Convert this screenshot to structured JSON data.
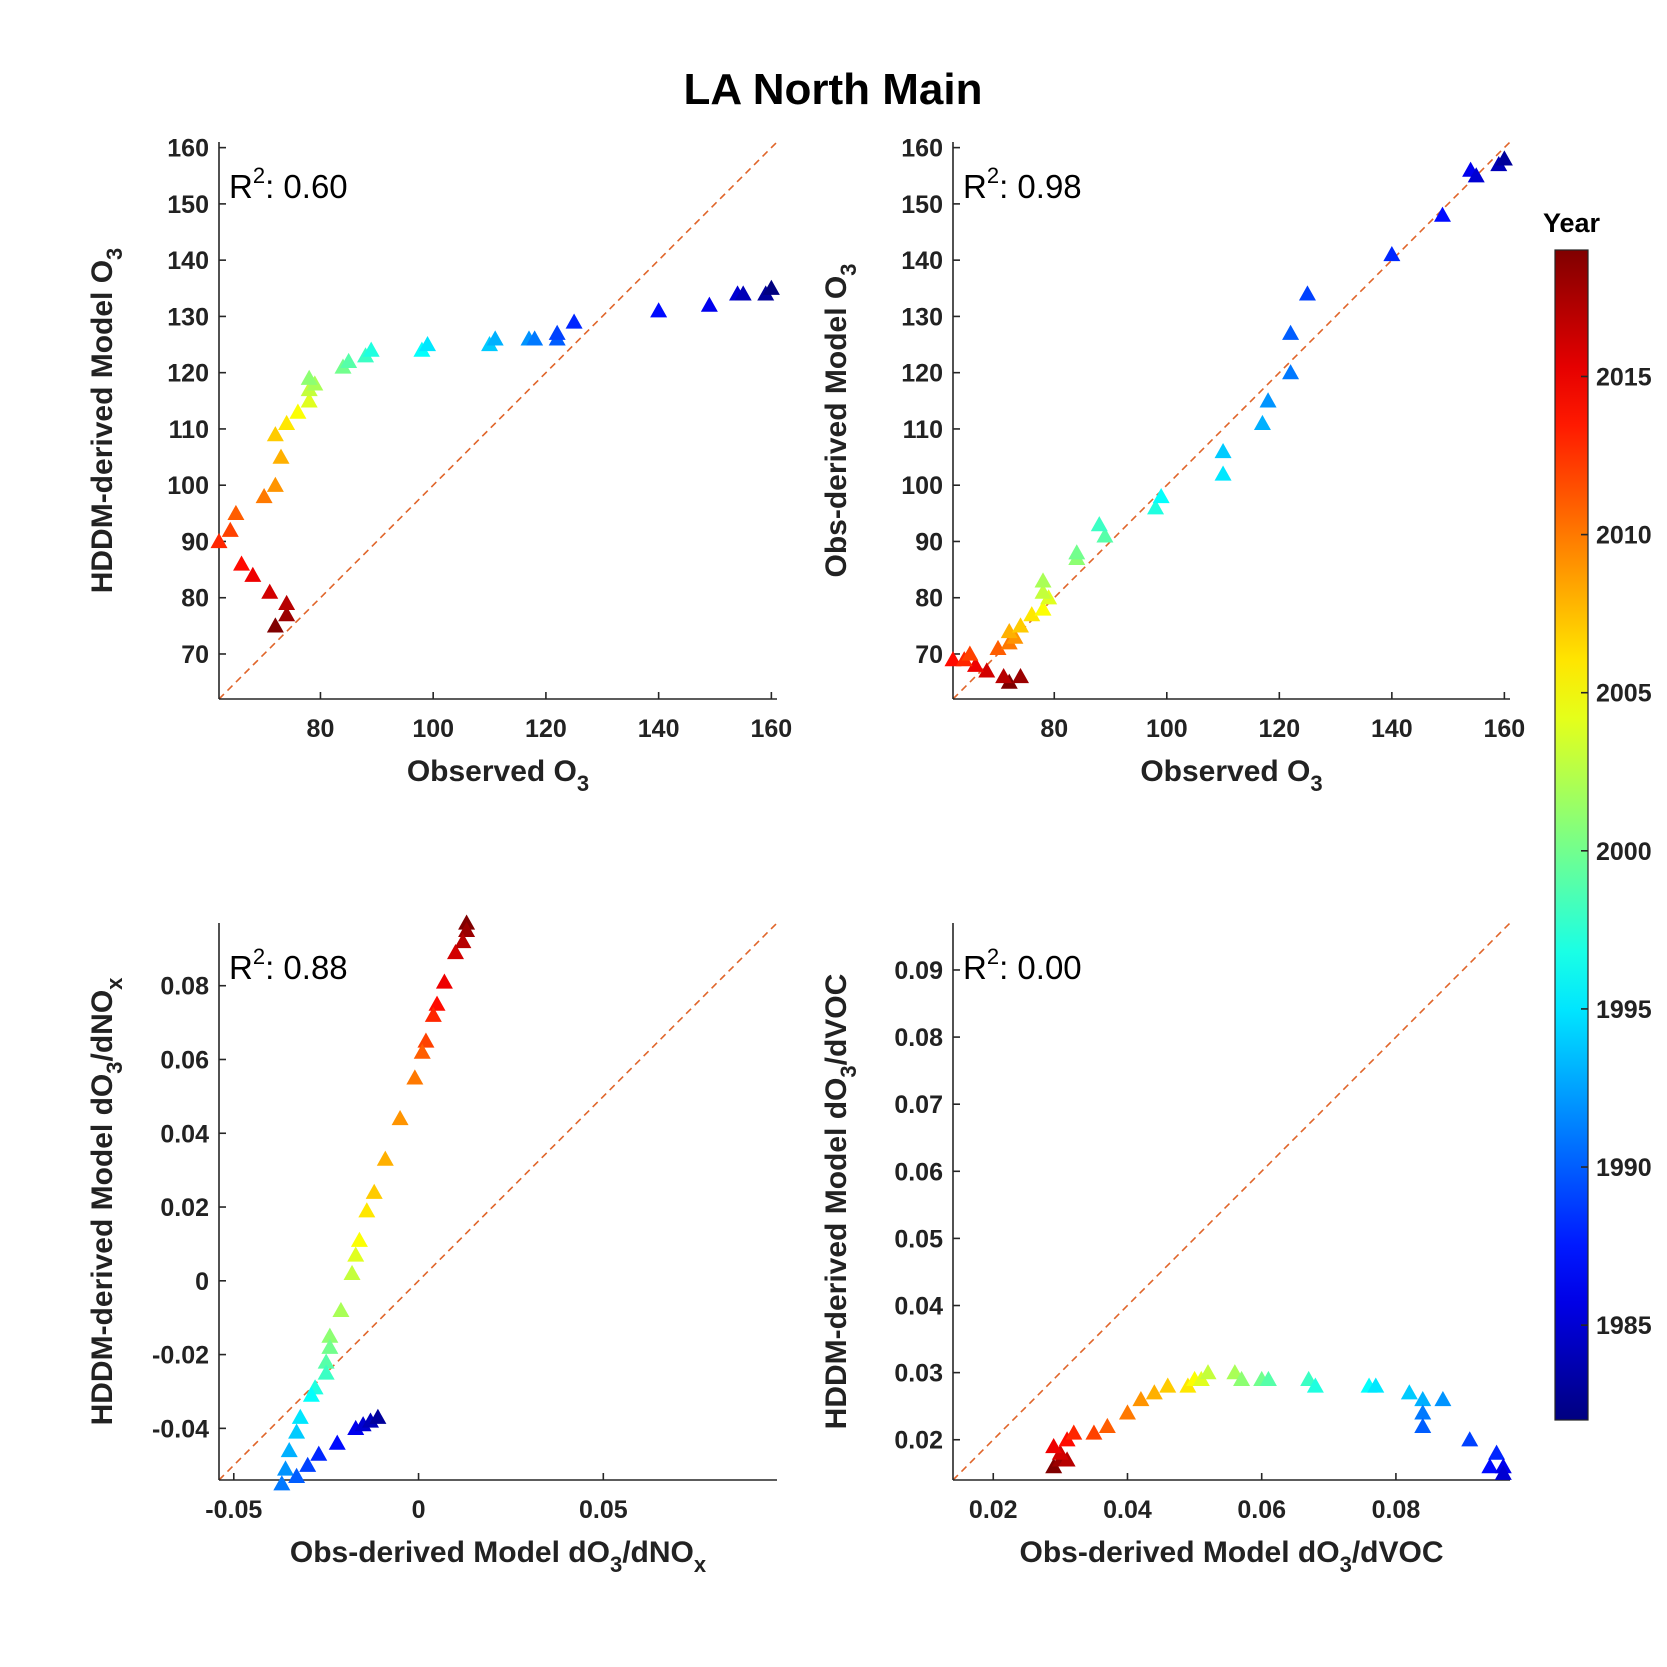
{
  "figure_title": "LA North Main",
  "colorbar": {
    "title": "Year",
    "min": 1982,
    "max": 2019,
    "ticks": [
      1985,
      1990,
      1995,
      2000,
      2005,
      2010,
      2015
    ],
    "tick_labels": [
      "1985",
      "1990",
      "1995",
      "2000",
      "2005",
      "2010",
      "2015"
    ],
    "colormap": "jet"
  },
  "chart_data": [
    {
      "type": "scatter",
      "id": "tl",
      "xlabel": "Observed O",
      "xlabel_sub": "3",
      "ylabel": "HDDM-derived Model O",
      "ylabel_sub": "3",
      "annotation": {
        "base": "R",
        "sup": "2",
        "text": ": 0.60"
      },
      "xlim": [
        62,
        161
      ],
      "ylim": [
        62,
        161
      ],
      "xticks": [
        80,
        100,
        120,
        140,
        160
      ],
      "xtick_labels": [
        "80",
        "100",
        "120",
        "140",
        "160"
      ],
      "yticks": [
        70,
        80,
        90,
        100,
        110,
        120,
        130,
        140,
        150,
        160
      ],
      "ytick_labels": [
        "70",
        "80",
        "90",
        "100",
        "110",
        "120",
        "130",
        "140",
        "150",
        "160"
      ],
      "reference_line": "y = x",
      "marker": "triangle",
      "points": [
        [
          72,
          75,
          2019
        ],
        [
          74,
          77,
          2018
        ],
        [
          74,
          79,
          2017
        ],
        [
          71,
          81,
          2016
        ],
        [
          68,
          84,
          2015
        ],
        [
          66,
          86,
          2014
        ],
        [
          62,
          90,
          2013
        ],
        [
          64,
          92,
          2012
        ],
        [
          65,
          95,
          2011
        ],
        [
          70,
          98,
          2010
        ],
        [
          72,
          100,
          2009
        ],
        [
          73,
          105,
          2008
        ],
        [
          72,
          109,
          2007
        ],
        [
          74,
          111,
          2006
        ],
        [
          76,
          113,
          2005
        ],
        [
          78,
          115,
          2004
        ],
        [
          78,
          117,
          2003
        ],
        [
          79,
          118,
          2002
        ],
        [
          78,
          119,
          2001
        ],
        [
          84,
          121,
          2000
        ],
        [
          85,
          122,
          1999
        ],
        [
          88,
          123,
          1998
        ],
        [
          89,
          124,
          1997
        ],
        [
          98,
          124,
          1996
        ],
        [
          99,
          125,
          1995
        ],
        [
          110,
          125,
          1994
        ],
        [
          111,
          126,
          1993
        ],
        [
          117,
          126,
          1992
        ],
        [
          118,
          126,
          1991
        ],
        [
          122,
          126,
          1990
        ],
        [
          122,
          127,
          1989
        ],
        [
          125,
          129,
          1988
        ],
        [
          140,
          131,
          1987
        ],
        [
          149,
          132,
          1986
        ],
        [
          154,
          134,
          1985
        ],
        [
          155,
          134,
          1984
        ],
        [
          159,
          134,
          1983
        ],
        [
          160,
          135,
          1982
        ]
      ]
    },
    {
      "type": "scatter",
      "id": "tr",
      "xlabel": "Observed O",
      "xlabel_sub": "3",
      "ylabel": "Obs-derived Model O",
      "ylabel_sub": "3",
      "annotation": {
        "base": "R",
        "sup": "2",
        "text": ": 0.98"
      },
      "xlim": [
        62,
        161
      ],
      "ylim": [
        62,
        161
      ],
      "xticks": [
        80,
        100,
        120,
        140,
        160
      ],
      "xtick_labels": [
        "80",
        "100",
        "120",
        "140",
        "160"
      ],
      "yticks": [
        70,
        80,
        90,
        100,
        110,
        120,
        130,
        140,
        150,
        160
      ],
      "ytick_labels": [
        "70",
        "80",
        "90",
        "100",
        "110",
        "120",
        "130",
        "140",
        "150",
        "160"
      ],
      "reference_line": "y = x",
      "marker": "triangle",
      "points": [
        [
          72,
          65,
          2019
        ],
        [
          74,
          66,
          2018
        ],
        [
          71,
          66,
          2017
        ],
        [
          68,
          67,
          2016
        ],
        [
          66,
          68,
          2015
        ],
        [
          62,
          69,
          2014
        ],
        [
          64,
          69,
          2013
        ],
        [
          65,
          70,
          2012
        ],
        [
          70,
          71,
          2011
        ],
        [
          72,
          72,
          2010
        ],
        [
          73,
          73,
          2009
        ],
        [
          72,
          74,
          2008
        ],
        [
          74,
          75,
          2007
        ],
        [
          76,
          77,
          2006
        ],
        [
          78,
          78,
          2005
        ],
        [
          79,
          80,
          2004
        ],
        [
          78,
          81,
          2003
        ],
        [
          78,
          83,
          2002
        ],
        [
          84,
          87,
          2001
        ],
        [
          84,
          88,
          2000
        ],
        [
          89,
          91,
          1999
        ],
        [
          88,
          93,
          1998
        ],
        [
          98,
          96,
          1997
        ],
        [
          99,
          98,
          1996
        ],
        [
          110,
          102,
          1995
        ],
        [
          110,
          106,
          1994
        ],
        [
          117,
          111,
          1993
        ],
        [
          118,
          115,
          1992
        ],
        [
          122,
          120,
          1991
        ],
        [
          122,
          127,
          1990
        ],
        [
          125,
          134,
          1989
        ],
        [
          140,
          141,
          1988
        ],
        [
          149,
          148,
          1987
        ],
        [
          154,
          156,
          1986
        ],
        [
          155,
          155,
          1985
        ],
        [
          159,
          157,
          1984
        ],
        [
          160,
          158,
          1983
        ]
      ]
    },
    {
      "type": "scatter",
      "id": "bl",
      "xlabel": "Obs-derived Model dO",
      "xlabel_sub": "3",
      "xlabel_tail": "/dNO",
      "xlabel_tail_sub": "x",
      "ylabel": "HDDM-derived Model dO",
      "ylabel_sub": "3",
      "ylabel_tail": "/dNO",
      "ylabel_tail_sub": "x",
      "annotation": {
        "base": "R",
        "sup": "2",
        "text": ": 0.88"
      },
      "xlim": [
        -0.054,
        0.097
      ],
      "ylim": [
        -0.054,
        0.097
      ],
      "xticks": [
        -0.05,
        0,
        0.05
      ],
      "xtick_labels": [
        "-0.05",
        "0",
        "0.05"
      ],
      "yticks": [
        -0.04,
        -0.02,
        0,
        0.02,
        0.04,
        0.06,
        0.08
      ],
      "ytick_labels": [
        "-0.04",
        "-0.02",
        "0",
        "0.02",
        "0.04",
        "0.06",
        "0.08"
      ],
      "reference_line": "y = x",
      "marker": "triangle",
      "points": [
        [
          0.013,
          0.097,
          2019
        ],
        [
          0.013,
          0.095,
          2018
        ],
        [
          0.012,
          0.092,
          2017
        ],
        [
          0.01,
          0.089,
          2016
        ],
        [
          0.007,
          0.081,
          2015
        ],
        [
          0.005,
          0.075,
          2014
        ],
        [
          0.004,
          0.072,
          2013
        ],
        [
          0.002,
          0.065,
          2012
        ],
        [
          0.001,
          0.062,
          2011
        ],
        [
          -0.001,
          0.055,
          2010
        ],
        [
          -0.005,
          0.044,
          2009
        ],
        [
          -0.009,
          0.033,
          2008
        ],
        [
          -0.012,
          0.024,
          2007
        ],
        [
          -0.014,
          0.019,
          2006
        ],
        [
          -0.016,
          0.011,
          2005
        ],
        [
          -0.017,
          0.007,
          2004
        ],
        [
          -0.018,
          0.002,
          2003
        ],
        [
          -0.021,
          -0.008,
          2002
        ],
        [
          -0.024,
          -0.015,
          2001
        ],
        [
          -0.024,
          -0.018,
          2000
        ],
        [
          -0.025,
          -0.022,
          1999
        ],
        [
          -0.025,
          -0.025,
          1998
        ],
        [
          -0.028,
          -0.029,
          1997
        ],
        [
          -0.029,
          -0.031,
          1996
        ],
        [
          -0.032,
          -0.037,
          1995
        ],
        [
          -0.033,
          -0.041,
          1994
        ],
        [
          -0.035,
          -0.046,
          1993
        ],
        [
          -0.036,
          -0.051,
          1992
        ],
        [
          -0.037,
          -0.055,
          1991
        ],
        [
          -0.033,
          -0.053,
          1990
        ],
        [
          -0.03,
          -0.05,
          1989
        ],
        [
          -0.027,
          -0.047,
          1988
        ],
        [
          -0.022,
          -0.044,
          1987
        ],
        [
          -0.017,
          -0.04,
          1986
        ],
        [
          -0.015,
          -0.039,
          1985
        ],
        [
          -0.013,
          -0.038,
          1984
        ],
        [
          -0.011,
          -0.037,
          1983
        ]
      ]
    },
    {
      "type": "scatter",
      "id": "br",
      "xlabel": "Obs-derived Model dO",
      "xlabel_sub": "3",
      "xlabel_tail": "/dVOC",
      "ylabel": "HDDM-derived Model dO",
      "ylabel_sub": "3",
      "ylabel_tail": "/dVOC",
      "annotation": {
        "base": "R",
        "sup": "2",
        "text": ": 0.00"
      },
      "xlim": [
        0.014,
        0.097
      ],
      "ylim": [
        0.014,
        0.097
      ],
      "xticks": [
        0.02,
        0.04,
        0.06,
        0.08
      ],
      "xtick_labels": [
        "0.02",
        "0.04",
        "0.06",
        "0.08"
      ],
      "yticks": [
        0.02,
        0.03,
        0.04,
        0.05,
        0.06,
        0.07,
        0.08,
        0.09
      ],
      "ytick_labels": [
        "0.02",
        "0.03",
        "0.04",
        "0.05",
        "0.06",
        "0.07",
        "0.08",
        "0.09"
      ],
      "reference_line": "y = x",
      "marker": "triangle",
      "points": [
        [
          0.029,
          0.016,
          2019
        ],
        [
          0.03,
          0.017,
          2018
        ],
        [
          0.031,
          0.017,
          2017
        ],
        [
          0.03,
          0.018,
          2016
        ],
        [
          0.029,
          0.019,
          2015
        ],
        [
          0.031,
          0.02,
          2014
        ],
        [
          0.032,
          0.021,
          2013
        ],
        [
          0.035,
          0.021,
          2012
        ],
        [
          0.037,
          0.022,
          2011
        ],
        [
          0.04,
          0.024,
          2010
        ],
        [
          0.042,
          0.026,
          2009
        ],
        [
          0.044,
          0.027,
          2008
        ],
        [
          0.046,
          0.028,
          2007
        ],
        [
          0.049,
          0.028,
          2006
        ],
        [
          0.05,
          0.029,
          2005
        ],
        [
          0.051,
          0.029,
          2004
        ],
        [
          0.052,
          0.03,
          2003
        ],
        [
          0.056,
          0.03,
          2002
        ],
        [
          0.057,
          0.029,
          2001
        ],
        [
          0.06,
          0.029,
          2000
        ],
        [
          0.061,
          0.029,
          1999
        ],
        [
          0.067,
          0.029,
          1998
        ],
        [
          0.068,
          0.028,
          1997
        ],
        [
          0.076,
          0.028,
          1996
        ],
        [
          0.077,
          0.028,
          1995
        ],
        [
          0.082,
          0.027,
          1994
        ],
        [
          0.084,
          0.026,
          1993
        ],
        [
          0.087,
          0.026,
          1992
        ],
        [
          0.084,
          0.024,
          1991
        ],
        [
          0.084,
          0.022,
          1990
        ],
        [
          0.091,
          0.02,
          1989
        ],
        [
          0.095,
          0.018,
          1988
        ],
        [
          0.094,
          0.016,
          1987
        ],
        [
          0.096,
          0.016,
          1986
        ],
        [
          0.096,
          0.015,
          1985
        ]
      ]
    }
  ]
}
